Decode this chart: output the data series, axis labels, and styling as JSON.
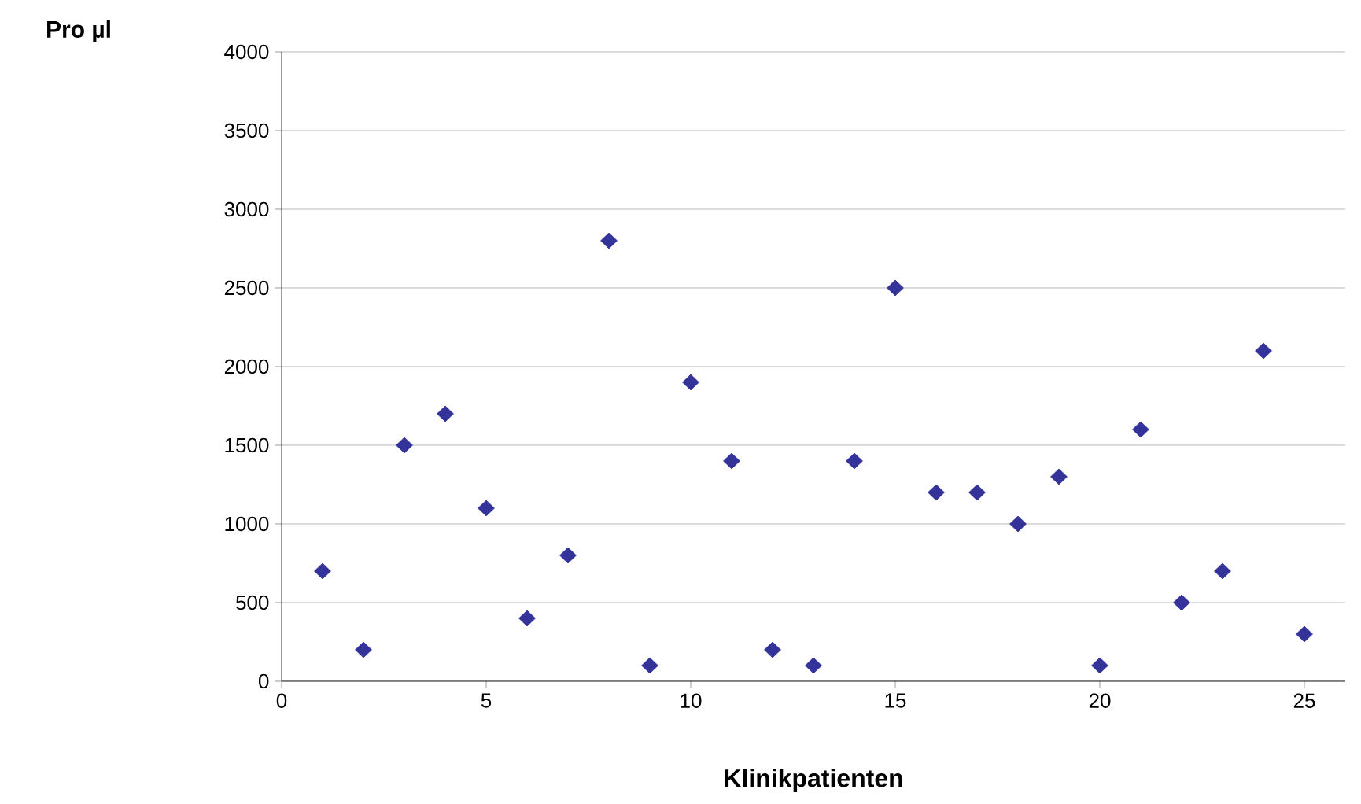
{
  "chart_data": {
    "type": "scatter",
    "xlabel": "Klinikpatienten",
    "ylabel": "Pro µl",
    "x": [
      1,
      2,
      3,
      4,
      5,
      6,
      7,
      8,
      9,
      10,
      11,
      12,
      13,
      14,
      15,
      16,
      17,
      18,
      19,
      20,
      21,
      22,
      23,
      24,
      25
    ],
    "series": [
      {
        "color": "#333399",
        "values": [
          700,
          200,
          1500,
          1700,
          1100,
          400,
          800,
          2800,
          100,
          1900,
          1400,
          200,
          100,
          1400,
          2500,
          1200,
          1200,
          1000,
          1300,
          100,
          1600,
          500,
          700,
          2100,
          300
        ]
      }
    ],
    "xlim": [
      0,
      26
    ],
    "xticks": [
      0,
      5,
      10,
      15,
      20,
      25
    ],
    "ylim": [
      0,
      4000
    ],
    "yticks": [
      0,
      500,
      1000,
      1500,
      2000,
      2500,
      3000,
      3500,
      4000
    ],
    "grid": "y",
    "marker": "diamond"
  }
}
